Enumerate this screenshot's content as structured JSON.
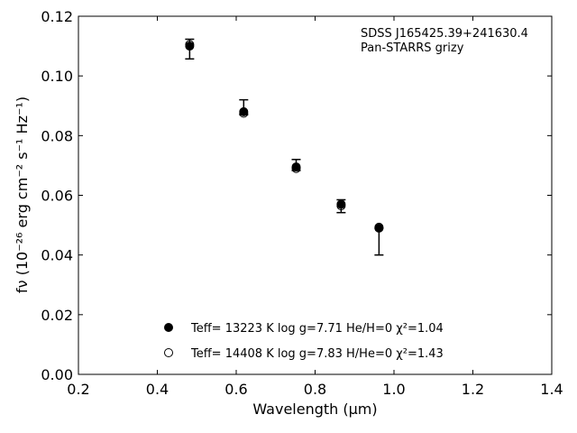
{
  "chart_data": {
    "type": "scatter",
    "annotation_lines": [
      "SDSS J165425.39+241630.4",
      "Pan-STARRS grizy"
    ],
    "xlabel": "Wavelength (μm)",
    "ylabel": "fν (10⁻²⁶ erg cm⁻² s⁻¹ Hz⁻¹)",
    "xlim": [
      0.2,
      1.4
    ],
    "ylim": [
      0.0,
      0.12
    ],
    "x_ticks": [
      "0.2",
      "0.4",
      "0.6",
      "0.8",
      "1.0",
      "1.2",
      "1.4"
    ],
    "y_ticks": [
      "0.00",
      "0.02",
      "0.04",
      "0.06",
      "0.08",
      "0.10",
      "0.12"
    ],
    "grid": false,
    "legend_position": "bottom-center",
    "observed": {
      "x": [
        0.482,
        0.619,
        0.752,
        0.866,
        0.962
      ],
      "y": [
        0.1095,
        0.0885,
        0.0695,
        0.0565,
        0.049
      ],
      "err_low": [
        0.0038,
        0.0015,
        0.0012,
        0.0023,
        0.009
      ],
      "err_high": [
        0.0028,
        0.0035,
        0.0025,
        0.002,
        0.0
      ]
    },
    "series": [
      {
        "name": "Teff= 13223 K  log g=7.71  He/H=0  χ²=1.04",
        "marker": "filled-circle",
        "x": [
          0.482,
          0.619,
          0.752,
          0.866,
          0.962
        ],
        "y": [
          0.11,
          0.088,
          0.0695,
          0.057,
          0.049
        ]
      },
      {
        "name": "Teff= 14408 K  log g=7.83  H/He=0  χ²=1.43",
        "marker": "open-circle",
        "x": [
          0.482,
          0.619,
          0.752,
          0.866,
          0.962
        ],
        "y": [
          0.1105,
          0.0875,
          0.069,
          0.0565,
          0.0493
        ]
      }
    ],
    "colors": {
      "marker": "#000000",
      "axis": "#000000",
      "background": "#ffffff"
    }
  }
}
